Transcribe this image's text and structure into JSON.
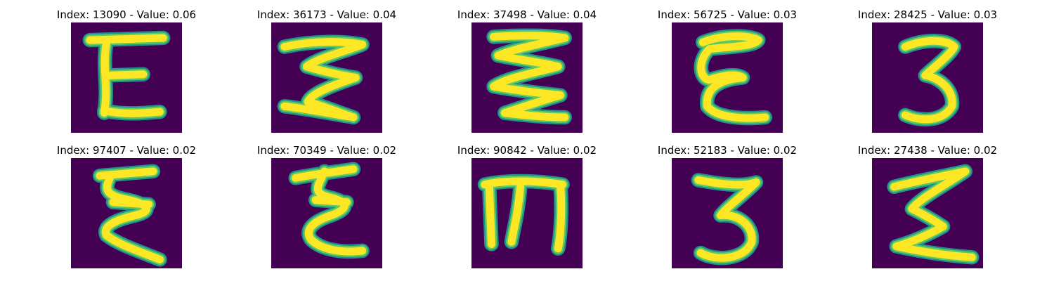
{
  "palette": {
    "background": "#440154",
    "stroke_low": "#21918c",
    "stroke_mid": "#5ec962",
    "stroke_high": "#fde725"
  },
  "samples": [
    {
      "caption": "Index: 13090 - Value: 0.06",
      "glyph": "E"
    },
    {
      "caption": "Index: 36173 - Value: 0.04",
      "glyph": "Z-like three"
    },
    {
      "caption": "Index: 37498 - Value: 0.04",
      "glyph": "zigzag three"
    },
    {
      "caption": "Index: 56725 - Value: 0.03",
      "glyph": "E"
    },
    {
      "caption": "Index: 28425 - Value: 0.03",
      "glyph": "3"
    },
    {
      "caption": "Index: 97407 - Value: 0.02",
      "glyph": "zigzag E"
    },
    {
      "caption": "Index: 70349 - Value: 0.02",
      "glyph": "zigzag E"
    },
    {
      "caption": "Index: 90842 - Value: 0.02",
      "glyph": "m"
    },
    {
      "caption": "Index: 52183 - Value: 0.02",
      "glyph": "3"
    },
    {
      "caption": "Index: 27438 - Value: 0.02",
      "glyph": "sigma"
    }
  ]
}
